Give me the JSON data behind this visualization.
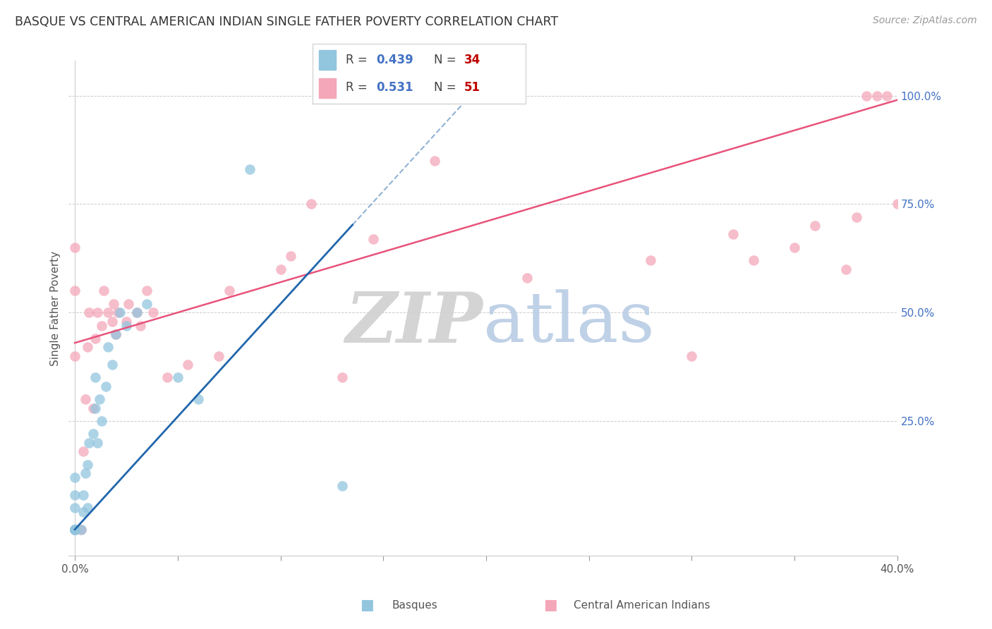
{
  "title": "BASQUE VS CENTRAL AMERICAN INDIAN SINGLE FATHER POVERTY CORRELATION CHART",
  "source": "Source: ZipAtlas.com",
  "ylabel": "Single Father Poverty",
  "xlim": [
    -0.003,
    0.4
  ],
  "ylim": [
    -0.06,
    1.08
  ],
  "grid_color": "#cccccc",
  "background_color": "#ffffff",
  "legend_R1": "0.439",
  "legend_N1": "34",
  "legend_R2": "0.531",
  "legend_N2": "51",
  "legend_label1": "Basques",
  "legend_label2": "Central American Indians",
  "color_blue": "#92c5de",
  "color_pink": "#f4a7b9",
  "line_color_blue": "#2166ac",
  "line_color_pink": "#e8537a",
  "blue_line_slope": 5.2,
  "blue_line_intercept": 0.0,
  "blue_line_solid_xmax": 0.135,
  "blue_line_dash_xmax": 0.25,
  "pink_line_slope": 1.4,
  "pink_line_intercept": 0.43,
  "basque_x": [
    0.0,
    0.0,
    0.0,
    0.0,
    0.0,
    0.0,
    0.0,
    0.0,
    0.0,
    0.003,
    0.004,
    0.004,
    0.005,
    0.006,
    0.006,
    0.007,
    0.009,
    0.01,
    0.01,
    0.011,
    0.012,
    0.013,
    0.015,
    0.016,
    0.018,
    0.02,
    0.022,
    0.025,
    0.03,
    0.035,
    0.05,
    0.06,
    0.085,
    0.13
  ],
  "basque_y": [
    0.0,
    0.0,
    0.0,
    0.0,
    0.0,
    0.0,
    0.05,
    0.08,
    0.12,
    0.0,
    0.04,
    0.08,
    0.13,
    0.05,
    0.15,
    0.2,
    0.22,
    0.28,
    0.35,
    0.2,
    0.3,
    0.25,
    0.33,
    0.42,
    0.38,
    0.45,
    0.5,
    0.47,
    0.5,
    0.52,
    0.35,
    0.3,
    0.83,
    0.1
  ],
  "cai_x": [
    0.0,
    0.0,
    0.0,
    0.0,
    0.0,
    0.0,
    0.0,
    0.003,
    0.004,
    0.005,
    0.006,
    0.007,
    0.009,
    0.01,
    0.011,
    0.013,
    0.014,
    0.016,
    0.018,
    0.019,
    0.02,
    0.021,
    0.025,
    0.026,
    0.03,
    0.032,
    0.035,
    0.038,
    0.045,
    0.055,
    0.07,
    0.075,
    0.1,
    0.105,
    0.115,
    0.13,
    0.145,
    0.175,
    0.22,
    0.28,
    0.3,
    0.32,
    0.33,
    0.35,
    0.36,
    0.375,
    0.38,
    0.385,
    0.39,
    0.395,
    0.4
  ],
  "cai_y": [
    0.0,
    0.0,
    0.0,
    0.0,
    0.4,
    0.55,
    0.65,
    0.0,
    0.18,
    0.3,
    0.42,
    0.5,
    0.28,
    0.44,
    0.5,
    0.47,
    0.55,
    0.5,
    0.48,
    0.52,
    0.45,
    0.5,
    0.48,
    0.52,
    0.5,
    0.47,
    0.55,
    0.5,
    0.35,
    0.38,
    0.4,
    0.55,
    0.6,
    0.63,
    0.75,
    0.35,
    0.67,
    0.85,
    0.58,
    0.62,
    0.4,
    0.68,
    0.62,
    0.65,
    0.7,
    0.6,
    0.72,
    1.0,
    1.0,
    1.0,
    0.75
  ]
}
